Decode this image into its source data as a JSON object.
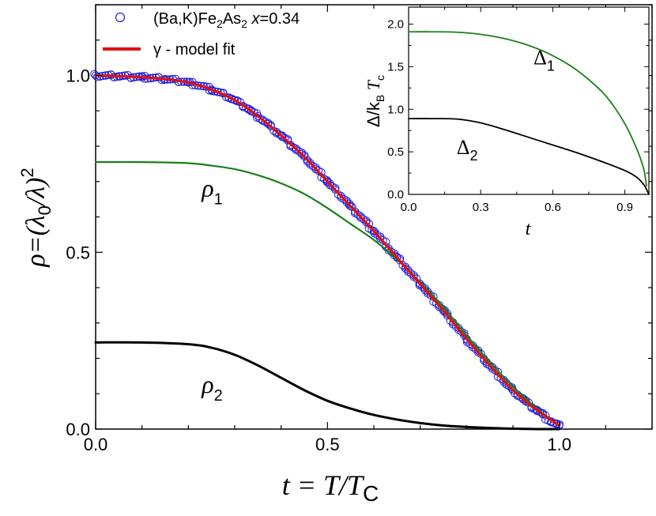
{
  "chart_data": [
    {
      "type": "scatter",
      "xlim": [
        0,
        1.2
      ],
      "ylim": [
        0,
        1.2
      ],
      "x_ticks": [
        {
          "value": 0.0,
          "label": "0.0"
        },
        {
          "value": 0.5,
          "label": "0.5"
        },
        {
          "value": 1.0,
          "label": "1.0"
        }
      ],
      "y_ticks": [
        {
          "value": 0.0,
          "label": "0.0"
        },
        {
          "value": 0.5,
          "label": "0.5"
        },
        {
          "value": 1.0,
          "label": "1.0"
        }
      ],
      "xlabel": {
        "main": "t = T/T",
        "sub": "C"
      },
      "ylabel": {
        "rho": "ρ",
        "eq": "=(λ",
        "sub0": "0",
        "rest": "/λ)",
        "sup": "2"
      },
      "legend": {
        "placement": "top-left",
        "entries": [
          {
            "name_parts": [
              "(Ba,K)Fe",
              "2",
              "As",
              "2",
              " ",
              "x",
              "=0.34"
            ],
            "marker": "open-circle",
            "color": "#1f1fd8"
          },
          {
            "name": "γ - model fit",
            "marker": "line",
            "color": "#e01010"
          }
        ]
      },
      "series": [
        {
          "role": "measured",
          "marker": "open-circle",
          "color": "#1f1fd8",
          "x": [
            0.0,
            0.05,
            0.1,
            0.15,
            0.2,
            0.25,
            0.3,
            0.35,
            0.4,
            0.45,
            0.5,
            0.55,
            0.6,
            0.65,
            0.7,
            0.75,
            0.8,
            0.85,
            0.9,
            0.95,
            1.0
          ],
          "y": [
            1.0,
            0.998,
            0.995,
            0.99,
            0.98,
            0.96,
            0.93,
            0.885,
            0.83,
            0.77,
            0.7,
            0.63,
            0.56,
            0.485,
            0.41,
            0.335,
            0.255,
            0.18,
            0.11,
            0.055,
            0.01
          ]
        },
        {
          "role": "fit",
          "color": "#e01010",
          "x": [
            0.0,
            0.05,
            0.1,
            0.15,
            0.2,
            0.25,
            0.3,
            0.35,
            0.4,
            0.45,
            0.5,
            0.55,
            0.6,
            0.65,
            0.7,
            0.75,
            0.8,
            0.85,
            0.9,
            0.95,
            1.0
          ],
          "y": [
            1.0,
            0.998,
            0.995,
            0.99,
            0.98,
            0.96,
            0.93,
            0.885,
            0.83,
            0.77,
            0.7,
            0.63,
            0.56,
            0.485,
            0.41,
            0.335,
            0.255,
            0.18,
            0.11,
            0.055,
            0.01
          ]
        },
        {
          "role": "rho1",
          "color": "#1a801a",
          "x": [
            0.0,
            0.1,
            0.2,
            0.25,
            0.3,
            0.35,
            0.4,
            0.45,
            0.5,
            0.55,
            0.6,
            0.65,
            0.7,
            0.75,
            0.8,
            0.85,
            0.9,
            0.95,
            1.0
          ],
          "y": [
            0.755,
            0.755,
            0.752,
            0.745,
            0.735,
            0.718,
            0.695,
            0.665,
            0.625,
            0.58,
            0.535,
            0.48,
            0.415,
            0.345,
            0.265,
            0.19,
            0.12,
            0.06,
            0.01
          ]
        },
        {
          "role": "rho2",
          "color": "#000000",
          "x": [
            0.0,
            0.1,
            0.2,
            0.25,
            0.3,
            0.35,
            0.4,
            0.45,
            0.5,
            0.55,
            0.6,
            0.65,
            0.7,
            0.75,
            0.8,
            0.85,
            0.9,
            0.95,
            1.0
          ],
          "y": [
            0.245,
            0.245,
            0.24,
            0.23,
            0.21,
            0.18,
            0.145,
            0.11,
            0.08,
            0.058,
            0.04,
            0.027,
            0.017,
            0.01,
            0.006,
            0.003,
            0.001,
            0.0,
            0.0
          ]
        }
      ],
      "annotations": [
        {
          "id": "rho1",
          "text": "ρ",
          "sub": "1",
          "x": 0.28,
          "y": 0.68
        },
        {
          "id": "rho2",
          "text": "ρ",
          "sub": "2",
          "x": 0.28,
          "y": 0.125
        }
      ]
    },
    {
      "type": "line",
      "placement": "inset top-right",
      "xlim": [
        0,
        1.0
      ],
      "ylim": [
        0,
        2.2
      ],
      "x_ticks": [
        {
          "value": 0.0,
          "label": "0.0"
        },
        {
          "value": 0.3,
          "label": "0.3"
        },
        {
          "value": 0.6,
          "label": "0.6"
        },
        {
          "value": 0.9,
          "label": "0.9"
        }
      ],
      "y_ticks": [
        {
          "value": 0.0,
          "label": "0.0"
        },
        {
          "value": 0.5,
          "label": "0.5"
        },
        {
          "value": 1.0,
          "label": "1.0"
        },
        {
          "value": 1.5,
          "label": "1.5"
        },
        {
          "value": 2.0,
          "label": "2.0"
        }
      ],
      "xlabel": "t",
      "ylabel": {
        "main": "Δ/k",
        "sub": "B",
        "tail": " T",
        "sub2": "c"
      },
      "series": [
        {
          "role": "delta1",
          "color": "#1a801a",
          "x": [
            0.0,
            0.1,
            0.2,
            0.3,
            0.4,
            0.5,
            0.6,
            0.7,
            0.8,
            0.85,
            0.9,
            0.93,
            0.96,
            0.98,
            0.99
          ],
          "y": [
            1.91,
            1.91,
            1.905,
            1.88,
            1.83,
            1.75,
            1.63,
            1.46,
            1.22,
            1.05,
            0.83,
            0.66,
            0.46,
            0.28,
            0.1
          ]
        },
        {
          "role": "delta2",
          "color": "#000000",
          "x": [
            0.0,
            0.1,
            0.2,
            0.3,
            0.4,
            0.5,
            0.6,
            0.7,
            0.8,
            0.9,
            0.95,
            0.98,
            0.99,
            1.0
          ],
          "y": [
            0.89,
            0.89,
            0.885,
            0.84,
            0.76,
            0.67,
            0.58,
            0.49,
            0.39,
            0.28,
            0.2,
            0.11,
            0.06,
            0.0
          ]
        }
      ],
      "annotations": [
        {
          "id": "delta1",
          "text": "Δ",
          "sub": "1",
          "x": 0.52,
          "y": 1.6
        },
        {
          "id": "delta2",
          "text": "Δ",
          "sub": "2",
          "x": 0.2,
          "y": 0.55
        }
      ]
    }
  ]
}
